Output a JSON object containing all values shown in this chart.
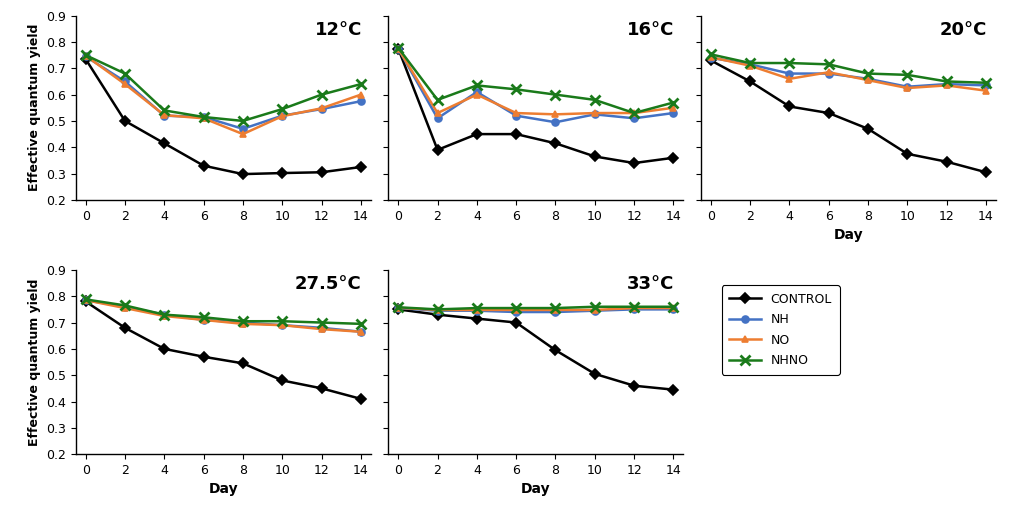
{
  "panels": [
    {
      "title": "12°C",
      "days": [
        0,
        2,
        4,
        6,
        8,
        10,
        12,
        14
      ],
      "control": [
        0.735,
        0.5,
        0.415,
        0.33,
        0.298,
        0.302,
        0.305,
        0.325
      ],
      "NH": [
        0.745,
        0.65,
        0.52,
        0.515,
        0.47,
        0.52,
        0.545,
        0.575
      ],
      "NO": [
        0.748,
        0.64,
        0.522,
        0.51,
        0.45,
        0.518,
        0.548,
        0.6
      ],
      "NHNO": [
        0.75,
        0.68,
        0.54,
        0.515,
        0.5,
        0.545,
        0.6,
        0.64
      ],
      "row": 0,
      "col": 0
    },
    {
      "title": "16°C",
      "days": [
        0,
        2,
        4,
        6,
        8,
        10,
        12,
        14
      ],
      "control": [
        0.775,
        0.39,
        0.45,
        0.45,
        0.415,
        0.365,
        0.34,
        0.36
      ],
      "NH": [
        0.775,
        0.51,
        0.61,
        0.52,
        0.495,
        0.525,
        0.51,
        0.53
      ],
      "NO": [
        0.775,
        0.53,
        0.6,
        0.53,
        0.525,
        0.53,
        0.53,
        0.55
      ],
      "NHNO": [
        0.778,
        0.58,
        0.635,
        0.62,
        0.6,
        0.58,
        0.53,
        0.57
      ],
      "row": 0,
      "col": 1
    },
    {
      "title": "20°C",
      "days": [
        0,
        2,
        4,
        6,
        8,
        10,
        12,
        14
      ],
      "control": [
        0.73,
        0.65,
        0.555,
        0.53,
        0.47,
        0.375,
        0.345,
        0.305
      ],
      "NH": [
        0.74,
        0.715,
        0.68,
        0.68,
        0.66,
        0.63,
        0.64,
        0.635
      ],
      "NO": [
        0.742,
        0.71,
        0.66,
        0.685,
        0.655,
        0.625,
        0.635,
        0.615
      ],
      "NHNO": [
        0.753,
        0.72,
        0.72,
        0.715,
        0.68,
        0.675,
        0.65,
        0.645
      ],
      "row": 0,
      "col": 2,
      "has_xlabel": true
    },
    {
      "title": "27.5°C",
      "days": [
        0,
        2,
        4,
        6,
        8,
        10,
        12,
        14
      ],
      "control": [
        0.78,
        0.68,
        0.6,
        0.57,
        0.545,
        0.48,
        0.45,
        0.41
      ],
      "NH": [
        0.785,
        0.76,
        0.73,
        0.71,
        0.7,
        0.69,
        0.68,
        0.665
      ],
      "NO": [
        0.785,
        0.755,
        0.725,
        0.71,
        0.695,
        0.69,
        0.675,
        0.665
      ],
      "NHNO": [
        0.788,
        0.765,
        0.73,
        0.72,
        0.705,
        0.705,
        0.7,
        0.695
      ],
      "row": 1,
      "col": 0,
      "has_xlabel": true
    },
    {
      "title": "33°C",
      "days": [
        0,
        2,
        4,
        6,
        8,
        10,
        12,
        14
      ],
      "control": [
        0.75,
        0.73,
        0.715,
        0.7,
        0.595,
        0.505,
        0.46,
        0.445
      ],
      "NH": [
        0.755,
        0.745,
        0.745,
        0.74,
        0.74,
        0.745,
        0.75,
        0.75
      ],
      "NO": [
        0.756,
        0.748,
        0.748,
        0.748,
        0.748,
        0.748,
        0.755,
        0.755
      ],
      "NHNO": [
        0.758,
        0.75,
        0.755,
        0.755,
        0.755,
        0.76,
        0.76,
        0.76
      ],
      "row": 1,
      "col": 1,
      "has_xlabel": true
    }
  ],
  "colors": {
    "control": "#000000",
    "NH": "#4472c4",
    "NO": "#ed7d31",
    "NHNO": "#1a7a1a"
  },
  "markers": {
    "control": "D",
    "NH": "o",
    "NO": "^",
    "NHNO": "x"
  },
  "markersize": {
    "control": 5,
    "NH": 5,
    "NO": 5,
    "NHNO": 7
  },
  "ylim": [
    0.2,
    0.9
  ],
  "yticks": [
    0.2,
    0.3,
    0.4,
    0.5,
    0.6,
    0.7,
    0.8,
    0.9
  ],
  "xlabel": "Day",
  "ylabel": "Effective quantum yield",
  "legend_labels": [
    "CONTROL",
    "NH",
    "NO",
    "NHNO"
  ]
}
